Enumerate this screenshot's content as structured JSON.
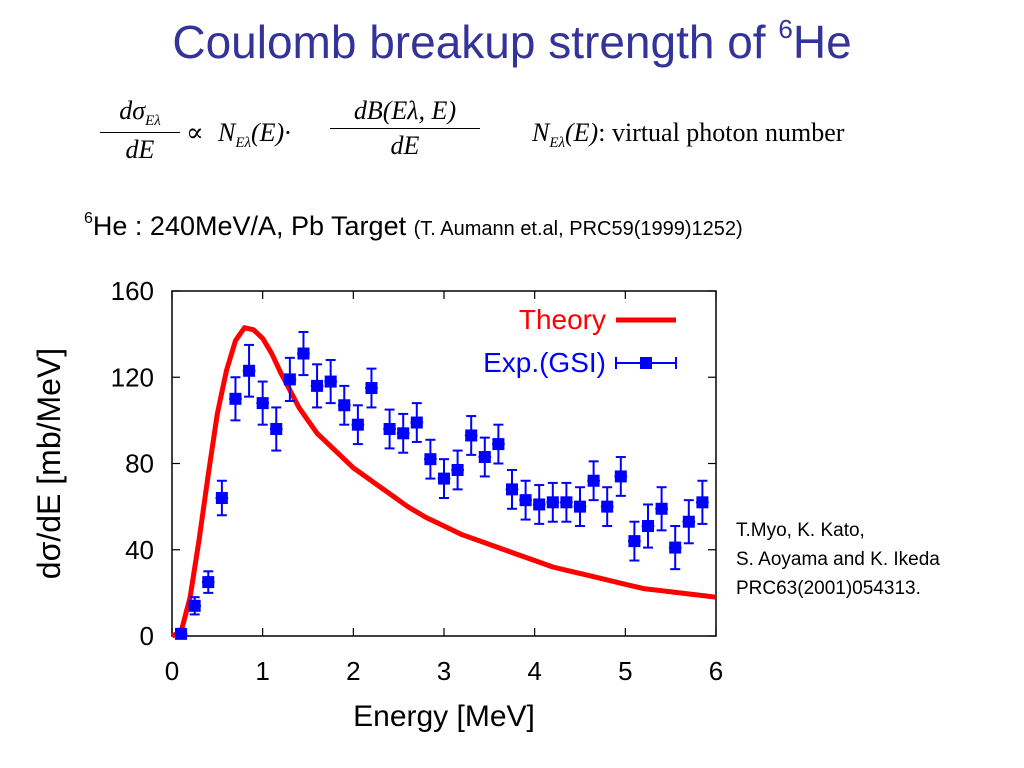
{
  "title": {
    "text": "Coulomb breakup strength of ",
    "sup": "6",
    "tail": "He"
  },
  "formula": {
    "lhs_num": "dσ",
    "lhs_num_sub": "Eλ",
    "lhs_den": "dE",
    "propto": "∝",
    "n_symbol": "N",
    "n_sub": "Eλ",
    "n_arg": "(E)·",
    "rhs_num": "dB(Eλ, E)",
    "rhs_den": "dE",
    "def_symbol": "N",
    "def_sub": "Eλ",
    "def_arg": "(E)",
    "def_text": ": virtual photon number"
  },
  "subtitle": {
    "sup": "6",
    "text": "He : 240MeV/A,  Pb Target ",
    "ref": "(T. Aumann et.al, PRC59(1999)1252)"
  },
  "reference": {
    "line1": "T.Myo, K. Kato,",
    "line2": "S. Aoyama and K. Ikeda",
    "line3": "PRC63(2001)054313."
  },
  "chart_data": {
    "type": "line",
    "xlabel": "Energy  [MeV]",
    "ylabel": "dσ/dE  [mb/MeV]",
    "xlim": [
      0,
      6
    ],
    "ylim": [
      0,
      160
    ],
    "xticks": [
      0,
      1,
      2,
      3,
      4,
      5,
      6
    ],
    "yticks": [
      0,
      40,
      80,
      120,
      160
    ],
    "legend_position": "top-right",
    "grid": false,
    "series": [
      {
        "name": "Theory",
        "kind": "line",
        "color": "#ff0000",
        "x": [
          0,
          0.1,
          0.2,
          0.3,
          0.4,
          0.5,
          0.6,
          0.7,
          0.8,
          0.9,
          1.0,
          1.1,
          1.2,
          1.3,
          1.4,
          1.5,
          1.6,
          1.8,
          2.0,
          2.2,
          2.4,
          2.6,
          2.8,
          3.0,
          3.2,
          3.4,
          3.6,
          3.8,
          4.0,
          4.2,
          4.4,
          4.6,
          4.8,
          5.0,
          5.2,
          5.4,
          5.6,
          5.8,
          6.0
        ],
        "y": [
          0,
          2,
          18,
          45,
          75,
          103,
          123,
          137,
          143,
          142,
          138,
          131,
          122,
          114,
          106,
          100,
          94,
          86,
          78,
          72,
          66,
          60,
          55,
          51,
          47,
          44,
          41,
          38,
          35,
          32,
          30,
          28,
          26,
          24,
          22,
          21,
          20,
          19,
          18
        ]
      },
      {
        "name": "Exp.(GSI)",
        "kind": "errorbar",
        "color": "#0000ff",
        "x": [
          0.1,
          0.25,
          0.4,
          0.55,
          0.7,
          0.85,
          1.0,
          1.15,
          1.3,
          1.45,
          1.6,
          1.75,
          1.9,
          2.05,
          2.2,
          2.4,
          2.55,
          2.7,
          2.85,
          3.0,
          3.15,
          3.3,
          3.45,
          3.6,
          3.75,
          3.9,
          4.05,
          4.2,
          4.35,
          4.5,
          4.65,
          4.8,
          4.95,
          5.1,
          5.25,
          5.4,
          5.55,
          5.7,
          5.85
        ],
        "y": [
          1,
          14,
          25,
          64,
          110,
          123,
          108,
          96,
          119,
          131,
          116,
          118,
          107,
          98,
          115,
          96,
          94,
          99,
          82,
          73,
          77,
          93,
          83,
          89,
          68,
          63,
          61,
          62,
          62,
          60,
          72,
          60,
          74,
          44,
          51,
          59,
          41,
          53,
          62
        ],
        "yerr": [
          2,
          4,
          5,
          8,
          10,
          12,
          10,
          10,
          10,
          10,
          10,
          10,
          9,
          9,
          9,
          9,
          9,
          9,
          9,
          9,
          9,
          9,
          9,
          9,
          9,
          9,
          9,
          9,
          9,
          9,
          9,
          9,
          9,
          9,
          10,
          10,
          10,
          10,
          10
        ],
        "xerr": 0.07
      }
    ]
  }
}
